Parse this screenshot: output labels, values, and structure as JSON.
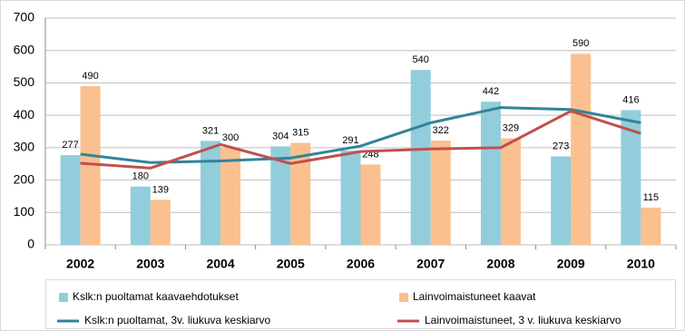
{
  "chart_data": {
    "type": "bar",
    "categories": [
      "2002",
      "2003",
      "2004",
      "2005",
      "2006",
      "2007",
      "2008",
      "2009",
      "2010"
    ],
    "ylim": [
      0,
      700
    ],
    "yticks": [
      0,
      100,
      200,
      300,
      400,
      500,
      600,
      700
    ],
    "grid": true,
    "legend": "bottom",
    "series": [
      {
        "name": "Kslk:n puoltamat kaavaehdotukset",
        "type": "bar",
        "color": "#92cddc",
        "values": [
          277,
          180,
          321,
          304,
          291,
          540,
          442,
          273,
          416
        ]
      },
      {
        "name": "Lainvoimaistuneet kaavat",
        "type": "bar",
        "color": "#fac090",
        "values": [
          490,
          139,
          300,
          315,
          248,
          322,
          329,
          590,
          115
        ]
      },
      {
        "name": "Kslk:n puoltamat, 3v. liukuva keskiarvo",
        "type": "line",
        "color": "#31849b",
        "values": [
          280,
          254,
          259,
          268,
          305,
          377,
          424,
          418,
          377
        ]
      },
      {
        "name": "Lainvoimaistuneet, 3 v. liukuva keskiarvo",
        "type": "line",
        "color": "#c0504d",
        "values": [
          252,
          237,
          310,
          251,
          288,
          296,
          300,
          413,
          344
        ]
      }
    ]
  }
}
